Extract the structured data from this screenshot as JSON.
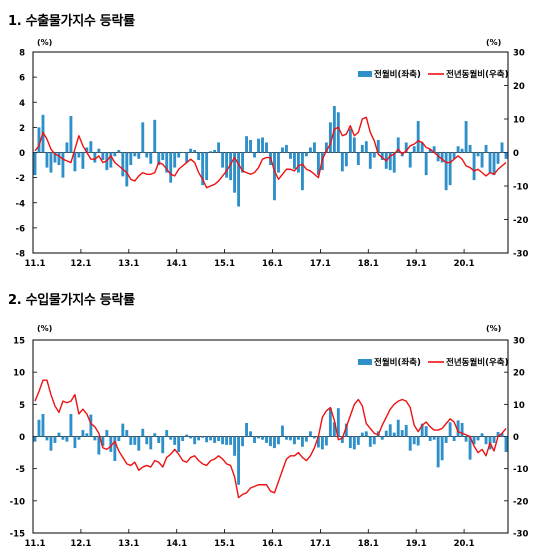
{
  "chart_data": [
    {
      "type": "bar",
      "title": "1. 수출물가지수 등락률",
      "left_unit": "(%)",
      "right_unit": "(%)",
      "ylim_left": [
        -8,
        8
      ],
      "ylim_right": [
        -30,
        30
      ],
      "yticks_left": [
        8,
        6,
        4,
        2,
        0,
        -2,
        -4,
        -6,
        -8
      ],
      "yticks_right": [
        30,
        20,
        10,
        0,
        -10,
        -20,
        -30
      ],
      "xtick_labels": [
        "11.1",
        "12.1",
        "13.1",
        "14.1",
        "15.1",
        "16.1",
        "17.1",
        "18.1",
        "19.1",
        "20.1"
      ],
      "x_start": "2011.1",
      "legend_position": "top-right",
      "legend": {
        "bar_label": "전월비(좌축)",
        "line_label": "전년동월비(우축)"
      },
      "colors": {
        "bar": "#2e8fc9",
        "line": "#ee1111",
        "axis": "#000000"
      },
      "bar_axis": "left",
      "line_axis": "right",
      "series": [
        {
          "name": "전월비(좌축)",
          "values": [
            -1.8,
            2.0,
            3.0,
            -1.2,
            -1.6,
            -0.8,
            -1.0,
            -2.0,
            0.8,
            2.9,
            -1.5,
            -0.4,
            -1.3,
            0.4,
            0.9,
            -0.8,
            0.3,
            -0.6,
            -1.4,
            -1.2,
            -0.3,
            0.2,
            -1.9,
            -2.7,
            -1.0,
            -0.3,
            -0.5,
            2.4,
            -0.4,
            -0.9,
            2.6,
            -1.0,
            -0.6,
            -1.6,
            -2.4,
            -1.2,
            -0.4,
            0.0,
            -0.8,
            0.3,
            0.2,
            -0.6,
            -2.6,
            -2.2,
            0.1,
            0.2,
            0.8,
            -1.2,
            -2.0,
            -2.2,
            -3.2,
            -4.3,
            -1.6,
            1.3,
            1.0,
            -0.4,
            1.1,
            1.2,
            0.8,
            -1.0,
            -3.8,
            -1.6,
            0.4,
            0.6,
            -0.5,
            -1.3,
            -1.6,
            -3.0,
            -0.3,
            0.4,
            0.8,
            -1.8,
            -1.4,
            0.8,
            2.4,
            3.7,
            3.2,
            -1.5,
            -1.1,
            1.9,
            1.2,
            -1.0,
            0.6,
            0.9,
            -1.3,
            -0.4,
            1.0,
            -0.6,
            -1.3,
            -1.4,
            -1.6,
            1.2,
            -0.3,
            0.8,
            -1.2,
            0.5,
            2.5,
            0.8,
            -1.8,
            0.3,
            0.5,
            -0.7,
            -0.8,
            -3.0,
            -2.6,
            -0.5,
            0.5,
            0.3,
            2.5,
            0.6,
            -2.2,
            -0.3,
            -1.2,
            0.6,
            -1.6,
            -1.8,
            -0.9,
            0.8,
            -0.5
          ]
        },
        {
          "name": "전년동월비(우축)",
          "values": [
            0.5,
            2.0,
            6.0,
            4.0,
            1.0,
            -0.5,
            -1.0,
            -2.0,
            -2.5,
            -3.0,
            1.0,
            5.0,
            2.0,
            0.0,
            -2.0,
            -2.0,
            -1.0,
            -3.0,
            -2.5,
            -1.0,
            -3.0,
            -4.0,
            -5.0,
            -6.0,
            -8.0,
            -8.5,
            -7.0,
            -6.0,
            -6.5,
            -6.5,
            -6.0,
            -3.0,
            -3.5,
            -5.0,
            -6.5,
            -7.0,
            -5.0,
            -4.0,
            -3.0,
            -2.0,
            -3.0,
            -6.0,
            -8.0,
            -10.5,
            -10.0,
            -9.5,
            -8.5,
            -7.0,
            -5.5,
            -3.5,
            -1.5,
            -3.5,
            -5.5,
            -6.0,
            -6.5,
            -6.0,
            -4.5,
            -2.0,
            -1.5,
            -1.5,
            -5.5,
            -8.0,
            -6.5,
            -5.0,
            -5.0,
            -5.5,
            -4.0,
            -3.5,
            -5.0,
            -5.5,
            -6.5,
            -7.5,
            -2.0,
            0.5,
            2.5,
            7.0,
            7.5,
            5.0,
            5.5,
            8.0,
            5.0,
            6.0,
            10.0,
            10.5,
            6.0,
            3.5,
            -0.5,
            -1.5,
            -2.5,
            -1.0,
            -0.5,
            1.0,
            -0.5,
            0.5,
            2.0,
            2.5,
            3.5,
            3.0,
            1.5,
            1.0,
            0.0,
            -1.0,
            -2.0,
            -3.0,
            -3.0,
            -2.0,
            -1.0,
            -2.0,
            -4.0,
            -4.5,
            -5.5,
            -5.0,
            -6.0,
            -7.0,
            -6.0,
            -6.5,
            -5.0,
            -4.0,
            -3.0
          ]
        }
      ]
    },
    {
      "type": "bar",
      "title": "2. 수입물가지수 등락률",
      "left_unit": "(%)",
      "right_unit": "(%)",
      "ylim_left": [
        -15,
        15
      ],
      "ylim_right": [
        -30,
        30
      ],
      "yticks_left": [
        15,
        10,
        5,
        0,
        -5,
        -10,
        -15
      ],
      "yticks_right": [
        30,
        20,
        10,
        0,
        -10,
        -20,
        -30
      ],
      "xtick_labels": [
        "11.1",
        "12.1",
        "13.1",
        "14.1",
        "15.1",
        "16.1",
        "17.1",
        "18.1",
        "19.1",
        "20.1"
      ],
      "x_start": "2011.1",
      "legend_position": "top-right",
      "legend": {
        "bar_label": "전월비(좌축)",
        "line_label": "전년동월비(우축)"
      },
      "colors": {
        "bar": "#2e8fc9",
        "line": "#ee1111",
        "axis": "#000000"
      },
      "bar_axis": "left",
      "line_axis": "right",
      "series": [
        {
          "name": "전월비(좌축)",
          "values": [
            -0.8,
            2.6,
            3.5,
            -0.6,
            -2.2,
            -1.0,
            0.6,
            -0.5,
            -0.8,
            3.5,
            -1.8,
            -0.5,
            1.0,
            0.5,
            3.4,
            -0.6,
            -2.8,
            -1.5,
            1.0,
            -2.4,
            -3.8,
            -0.7,
            2.0,
            1.0,
            -1.3,
            -1.3,
            -2.2,
            1.2,
            -1.2,
            -2.0,
            0.5,
            -1.0,
            -2.6,
            1.0,
            -0.5,
            -1.3,
            -2.4,
            -0.7,
            0.3,
            -0.3,
            -1.2,
            -0.6,
            -0.2,
            -0.9,
            -0.6,
            -1.0,
            -0.7,
            -1.2,
            -1.3,
            -1.3,
            -3.0,
            -7.5,
            -1.5,
            2.1,
            0.8,
            -1.0,
            -0.3,
            -0.5,
            -1.0,
            -1.5,
            -1.8,
            -1.2,
            1.7,
            -0.5,
            -0.6,
            -1.2,
            -0.5,
            -1.6,
            -0.8,
            0.8,
            -0.3,
            -1.7,
            -2.0,
            -1.4,
            4.4,
            2.2,
            4.4,
            -1.0,
            2.0,
            -1.8,
            -2.0,
            -1.3,
            0.6,
            0.8,
            -1.6,
            -1.2,
            0.8,
            -0.5,
            0.9,
            1.9,
            0.6,
            2.6,
            1.0,
            1.8,
            -2.2,
            -1.2,
            -1.4,
            2.0,
            1.6,
            -0.7,
            -0.5,
            -4.8,
            -3.7,
            -1.0,
            2.2,
            -0.7,
            2.5,
            2.1,
            -0.8,
            -3.6,
            -1.2,
            -0.6,
            0.5,
            -1.2,
            -2.0,
            -1.0,
            0.7,
            0.5,
            -2.4
          ]
        },
        {
          "name": "전년동월비(우축)",
          "values": [
            11.0,
            14.0,
            17.5,
            17.5,
            13.0,
            9.5,
            7.5,
            11.0,
            10.5,
            11.0,
            13.0,
            7.0,
            8.5,
            7.0,
            4.0,
            3.0,
            1.0,
            -3.5,
            -4.0,
            -3.0,
            -1.5,
            -4.5,
            -6.5,
            -8.5,
            -9.0,
            -8.0,
            -10.5,
            -9.5,
            -9.0,
            -9.5,
            -7.5,
            -8.0,
            -9.5,
            -6.5,
            -5.5,
            -4.0,
            -5.5,
            -7.5,
            -8.0,
            -6.5,
            -6.0,
            -7.5,
            -8.5,
            -9.0,
            -7.5,
            -7.0,
            -6.0,
            -7.0,
            -8.5,
            -9.0,
            -12.5,
            -19.0,
            -18.0,
            -17.5,
            -16.0,
            -15.5,
            -15.0,
            -15.0,
            -15.0,
            -17.0,
            -17.5,
            -14.0,
            -10.5,
            -7.0,
            -6.0,
            -6.0,
            -5.0,
            -6.5,
            -7.5,
            -6.0,
            -3.5,
            0.0,
            6.0,
            8.0,
            9.0,
            5.0,
            -1.0,
            -0.5,
            3.0,
            6.5,
            10.0,
            11.5,
            9.5,
            4.0,
            2.5,
            1.0,
            0.5,
            3.5,
            6.0,
            8.5,
            10.0,
            11.0,
            11.5,
            11.0,
            9.0,
            3.5,
            1.5,
            3.5,
            4.5,
            3.0,
            2.0,
            2.0,
            2.5,
            4.0,
            5.5,
            4.5,
            1.5,
            1.0,
            0.5,
            0.0,
            -3.0,
            -5.0,
            -4.0,
            -6.0,
            -2.0,
            -4.5,
            0.0,
            1.0,
            2.5
          ]
        }
      ]
    }
  ]
}
